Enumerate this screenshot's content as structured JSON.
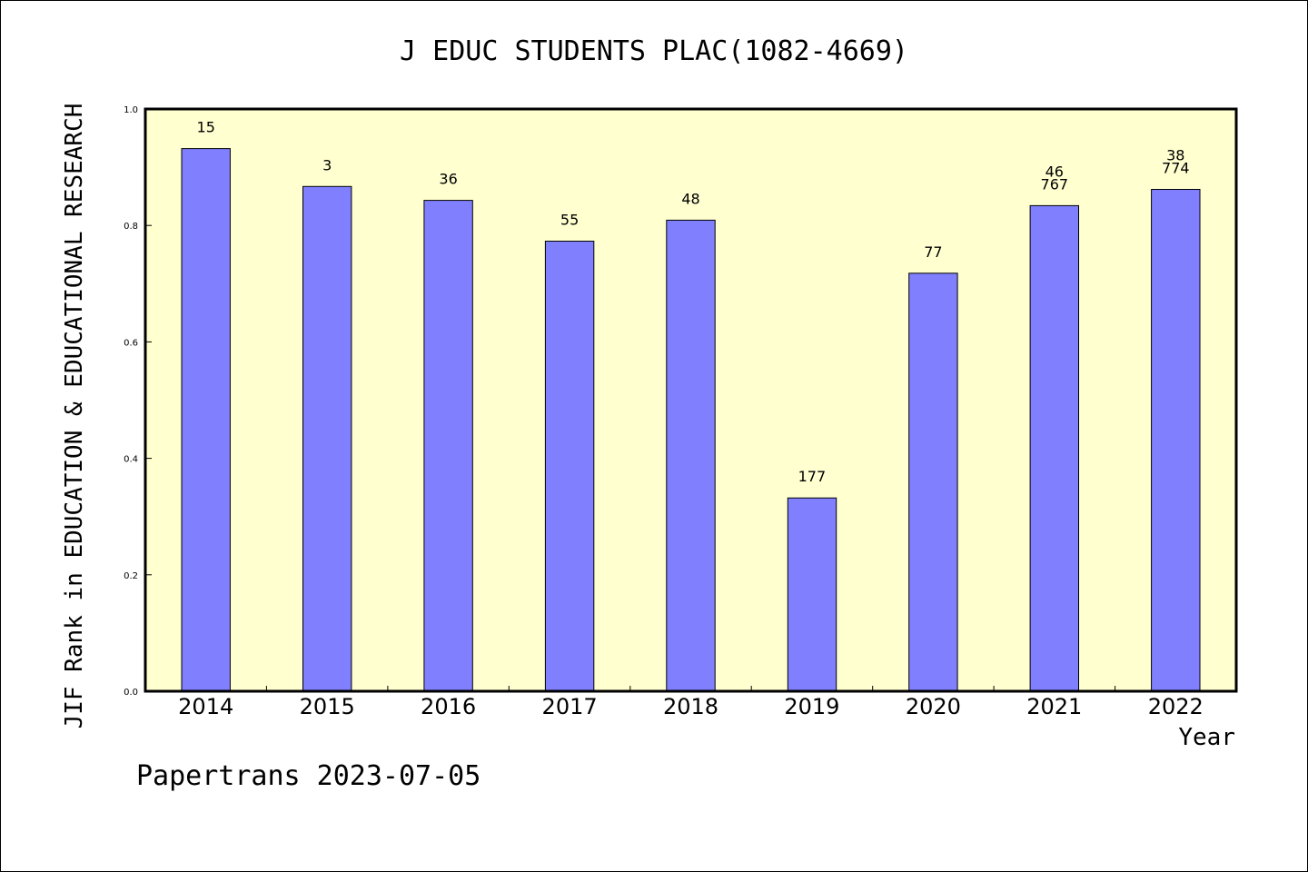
{
  "chart_data": {
    "type": "bar",
    "title": "J EDUC STUDENTS PLAC(1082-4669)",
    "xlabel": "Year",
    "ylabel": "JIF Rank in EDUCATION & EDUCATIONAL RESEARCH",
    "ylim": [
      0,
      1
    ],
    "yticks": [
      "0.0",
      "0.2",
      "0.4",
      "0.6",
      "0.8",
      "1.0"
    ],
    "categories": [
      "2014",
      "2015",
      "2016",
      "2017",
      "2018",
      "2019",
      "2020",
      "2021",
      "2022"
    ],
    "values": [
      0.932,
      0.867,
      0.843,
      0.773,
      0.809,
      0.332,
      0.718,
      0.834,
      0.862
    ],
    "labels": [
      [
        "15"
      ],
      [
        "3"
      ],
      [
        "36"
      ],
      [
        "55"
      ],
      [
        "48"
      ],
      [
        "177"
      ],
      [
        "77"
      ],
      [
        "46",
        "767"
      ],
      [
        "38",
        "774"
      ]
    ],
    "footer": "Papertrans 2023-07-05",
    "colors": {
      "plot_background": "#ffffd0",
      "bar_fill": "#8080ff",
      "bar_stroke": "#000000"
    }
  }
}
